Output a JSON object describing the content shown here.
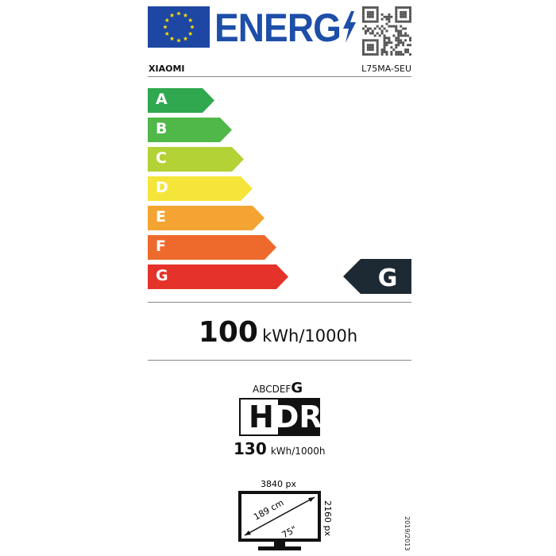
{
  "header": {
    "logo_text": "ENERG",
    "brand": "XIAOMI",
    "model": "L75MA-SEU",
    "icons": [
      "eu-flag-icon",
      "lightning-bolt-icon",
      "qr-code-icon"
    ]
  },
  "scale": {
    "classes": [
      {
        "label": "A",
        "color": "#2fa84f"
      },
      {
        "label": "B",
        "color": "#4fb848"
      },
      {
        "label": "C",
        "color": "#b3d235"
      },
      {
        "label": "D",
        "color": "#f5e53a"
      },
      {
        "label": "E",
        "color": "#f4a432"
      },
      {
        "label": "F",
        "color": "#ee6a2c"
      },
      {
        "label": "G",
        "color": "#e5322a"
      }
    ],
    "selected": "G",
    "selected_color": "#1e2a33"
  },
  "sdr": {
    "value": "100",
    "unit": "kWh/1000h"
  },
  "hdr": {
    "classes_prefix": "ABCDEF",
    "class": "G",
    "logo_h": "H",
    "logo_d": "D",
    "logo_r": "R",
    "value": "130",
    "unit": "kWh/1000h"
  },
  "screen": {
    "width_px": "3840 px",
    "height_px": "2160 px",
    "diagonal_cm": "189 cm",
    "diagonal_in": "75\""
  },
  "regulation": "2019/2013"
}
